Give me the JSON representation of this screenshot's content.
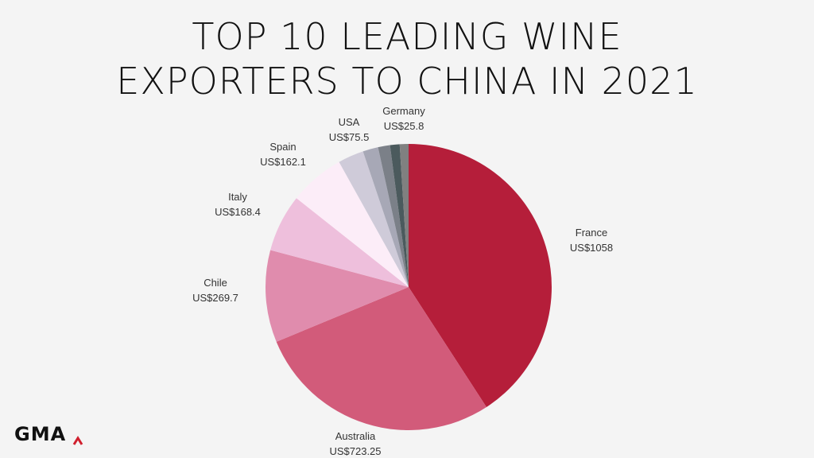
{
  "chart_data": {
    "type": "pie",
    "title_lines": [
      "TOP 10 LEADING WINE",
      "EXPORTERS TO CHINA IN 2021"
    ],
    "categories": [
      "France",
      "Australia",
      "Chile",
      "Italy",
      "Spain",
      "USA",
      "",
      "",
      "",
      "Germany"
    ],
    "values": [
      1058,
      723.25,
      269.7,
      168.4,
      162.1,
      75.5,
      45,
      35,
      28,
      25.8
    ],
    "value_labels": [
      "US$1058",
      "US$723.25",
      "US$269.7",
      "US$168.4",
      "US$162.1",
      "US$75.5",
      "",
      "",
      "",
      "US$25.8"
    ],
    "colors": [
      "#b51e3a",
      "#d25b7a",
      "#e08cad",
      "#eebfdc",
      "#fcedf8",
      "#cfcbd9",
      "#a7a8b6",
      "#7b8088",
      "#4b5a5d",
      "#808080"
    ],
    "legend": "none"
  },
  "brand": {
    "logo_text": "GMA",
    "accent_color": "#d0202e"
  }
}
